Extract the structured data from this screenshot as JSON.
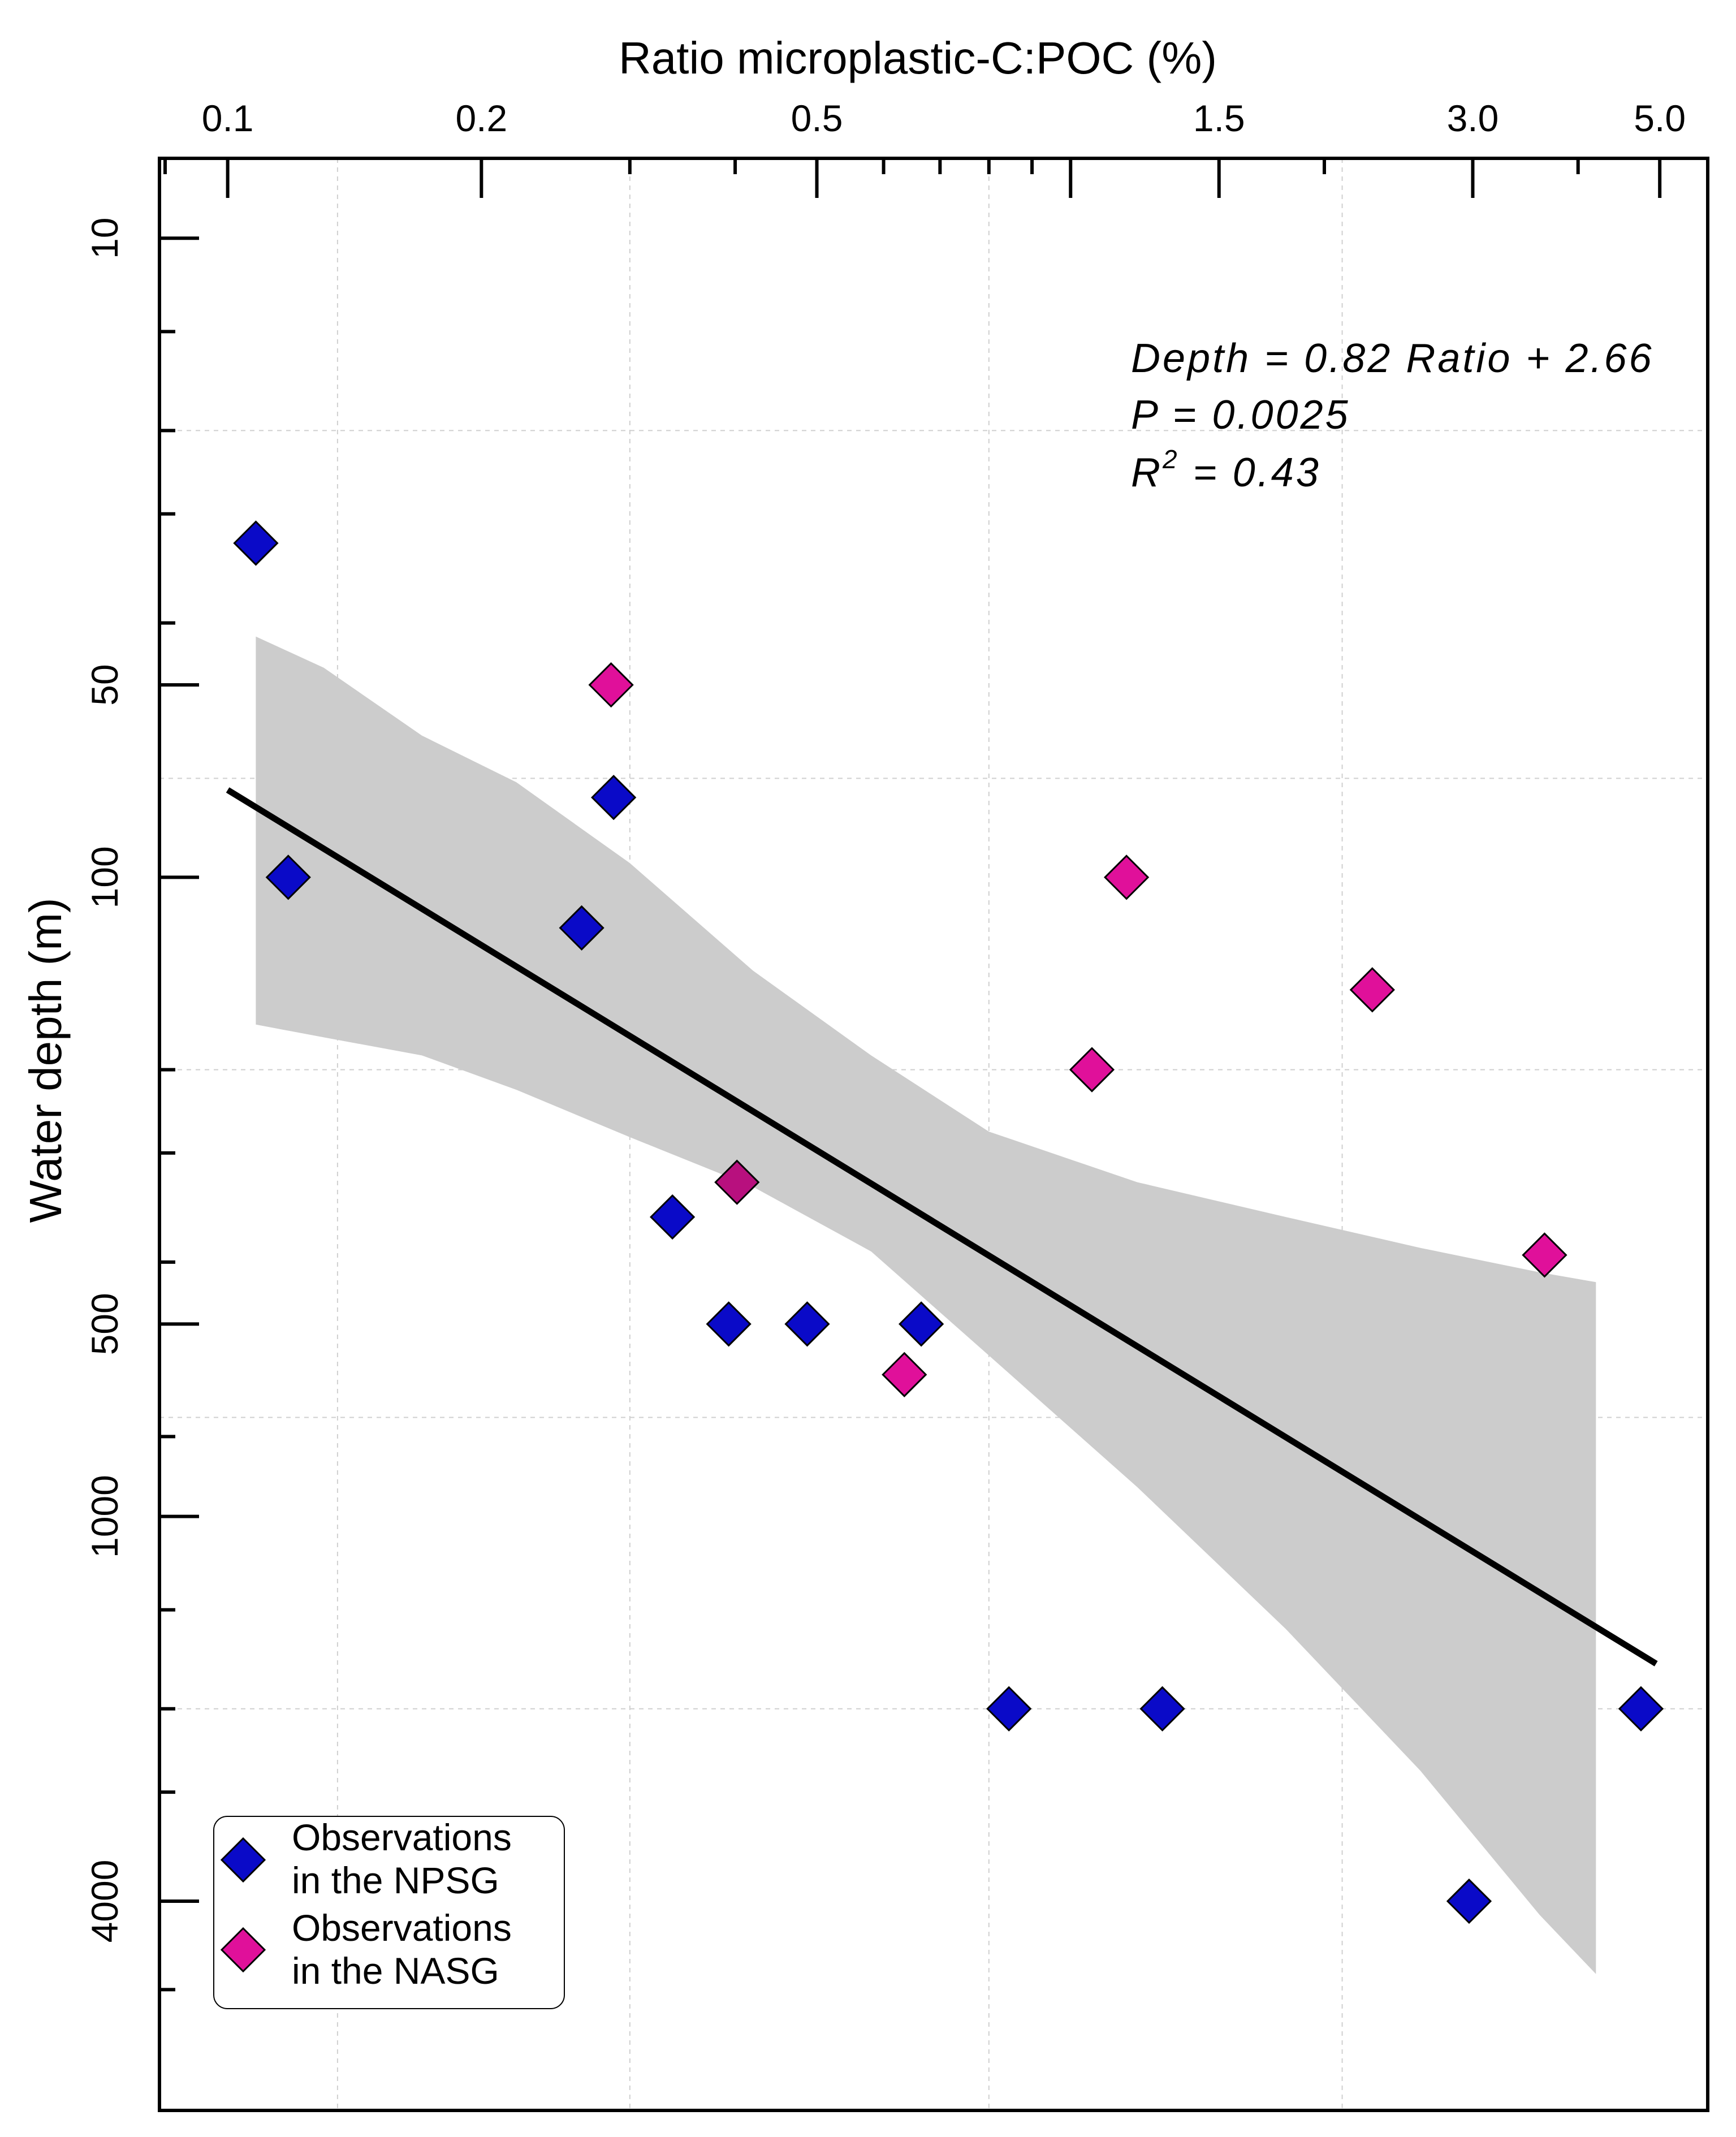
{
  "chart_data": {
    "type": "scatter",
    "title": "",
    "xlabel": "Ratio microplastic-C:POC (%)",
    "ylabel": "Water depth (m)",
    "x_scale": "log",
    "y_scale": "log",
    "y_inverted": true,
    "xlim": [
      0.083,
      5.7
    ],
    "ylim": [
      7.5,
      8500
    ],
    "x_ticks": [
      {
        "value": 0.1,
        "label": "0.1"
      },
      {
        "value": 0.2,
        "label": "0.2"
      },
      {
        "value": 0.5,
        "label": "0.5"
      },
      {
        "value": 1.0,
        "label": ""
      },
      {
        "value": 1.5,
        "label": "1.5"
      },
      {
        "value": 3.0,
        "label": "3.0"
      },
      {
        "value": 5.0,
        "label": "5.0"
      }
    ],
    "x_minor_ticks": [
      0.3,
      0.4,
      0.6,
      0.7,
      0.8,
      0.9,
      2.0,
      4.0
    ],
    "x_grid": [
      0.135,
      0.3,
      0.8,
      2.1
    ],
    "y_ticks": [
      {
        "value": 10,
        "label": "10"
      },
      {
        "value": 50,
        "label": "50"
      },
      {
        "value": 100,
        "label": "100"
      },
      {
        "value": 500,
        "label": "500"
      },
      {
        "value": 1000,
        "label": "1000"
      },
      {
        "value": 4000,
        "label": "4000"
      }
    ],
    "y_minor_ticks": [
      14,
      20,
      27,
      40,
      200,
      270,
      400,
      750,
      1400,
      2000,
      2700,
      5500
    ],
    "y_grid": [
      20,
      70,
      200,
      700,
      2000
    ],
    "series": [
      {
        "name": "Observations in the NPSG",
        "color": "#0a0ac8",
        "points": [
          {
            "x": 0.108,
            "y": 30
          },
          {
            "x": 0.118,
            "y": 100
          },
          {
            "x": 0.263,
            "y": 120
          },
          {
            "x": 0.287,
            "y": 75
          },
          {
            "x": 0.337,
            "y": 340
          },
          {
            "x": 0.393,
            "y": 500
          },
          {
            "x": 0.487,
            "y": 500
          },
          {
            "x": 0.665,
            "y": 500
          },
          {
            "x": 0.845,
            "y": 2000
          },
          {
            "x": 1.285,
            "y": 2000
          },
          {
            "x": 2.97,
            "y": 4000
          },
          {
            "x": 4.75,
            "y": 2000
          }
        ]
      },
      {
        "name": "Observations in the NASG",
        "color": "#e0109a",
        "points": [
          {
            "x": 0.285,
            "y": 50
          },
          {
            "x": 0.402,
            "y": 300,
            "color": "#b8107e"
          },
          {
            "x": 0.635,
            "y": 600
          },
          {
            "x": 1.06,
            "y": 200
          },
          {
            "x": 1.165,
            "y": 100
          },
          {
            "x": 2.28,
            "y": 150
          },
          {
            "x": 3.65,
            "y": 390
          }
        ]
      }
    ],
    "fit_line": {
      "x": [
        0.1,
        4.95
      ],
      "y": [
        73,
        1700
      ],
      "color": "#000000"
    },
    "confidence_band": {
      "color": "#cccccc",
      "upper": [
        [
          0.108,
          42
        ],
        [
          0.13,
          47
        ],
        [
          0.17,
          60
        ],
        [
          0.22,
          71
        ],
        [
          0.3,
          95
        ],
        [
          0.42,
          140
        ],
        [
          0.58,
          190
        ],
        [
          0.8,
          250
        ],
        [
          1.2,
          300
        ],
        [
          1.8,
          340
        ],
        [
          2.6,
          380
        ],
        [
          3.6,
          415
        ],
        [
          4.2,
          430
        ]
      ],
      "lower": [
        [
          0.108,
          170
        ],
        [
          0.13,
          178
        ],
        [
          0.17,
          190
        ],
        [
          0.22,
          215
        ],
        [
          0.3,
          255
        ],
        [
          0.42,
          305
        ],
        [
          0.58,
          385
        ],
        [
          0.8,
          560
        ],
        [
          1.2,
          900
        ],
        [
          1.8,
          1500
        ],
        [
          2.6,
          2500
        ],
        [
          3.6,
          4200
        ],
        [
          4.2,
          5200
        ]
      ]
    },
    "annotation": {
      "line1": "Depth = 0.82 Ratio + 2.66",
      "line2": "P = 0.0025",
      "line3_prefix": "R",
      "line3_sup": "2",
      "line3_suffix": " = 0.43"
    },
    "legend": {
      "position": "bottom-left",
      "entries": [
        {
          "line1": "Observations",
          "line2": "in the NPSG",
          "color": "#0a0ac8"
        },
        {
          "line1": "Observations",
          "line2": "in the NASG",
          "color": "#e0109a"
        }
      ]
    }
  }
}
